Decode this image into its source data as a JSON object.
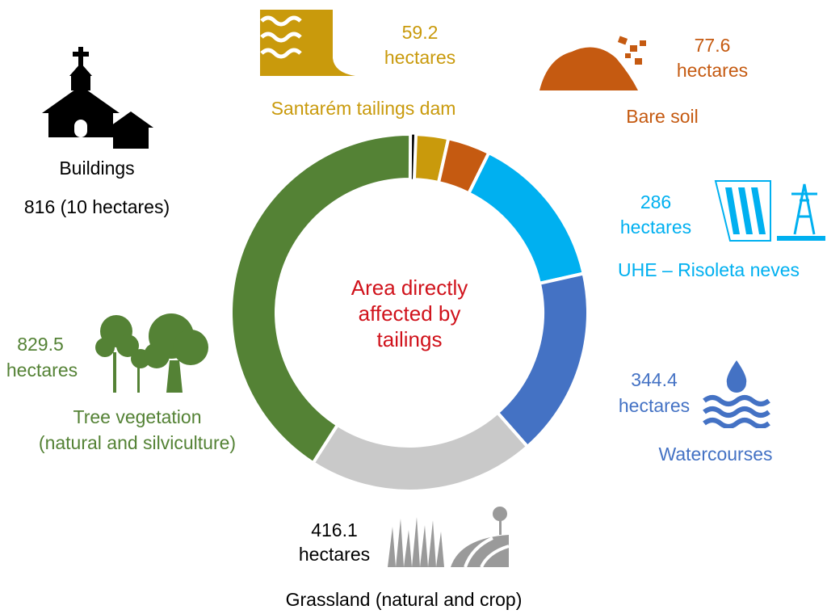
{
  "chart_data": {
    "type": "pie",
    "donut": true,
    "title": "Area directly affected by tailings",
    "unit": "hectares",
    "slices": [
      {
        "name": "Buildings",
        "value": 10,
        "value_label": "816 (10 hectares)",
        "color": "#000000",
        "icon": "church-house-icon"
      },
      {
        "name": "Santarém tailings dam",
        "value": 59.2,
        "value_label": "59.2",
        "unit_label": "hectares",
        "color": "#c99a0c",
        "icon": "dam-icon"
      },
      {
        "name": "Bare soil",
        "value": 77.6,
        "value_label": "77.6",
        "unit_label": "hectares",
        "color": "#c55a11",
        "icon": "soil-pile-icon"
      },
      {
        "name": "UHE – Risoleta neves",
        "value": 286,
        "value_label": "286",
        "unit_label": "hectares",
        "color": "#00b0f0",
        "icon": "hydroelectric-dam-icon"
      },
      {
        "name": "Watercourses",
        "value": 344.4,
        "value_label": "344.4",
        "unit_label": "hectares",
        "color": "#4472c4",
        "icon": "water-drop-waves-icon"
      },
      {
        "name": "Grassland (natural and crop)",
        "value": 416.1,
        "value_label": "416.1",
        "unit_label": "hectares",
        "color": "#c9c9c9",
        "icon": "grass-field-icon"
      },
      {
        "name": "Tree vegetation (natural and silviculture)",
        "name_lines": [
          "Tree vegetation",
          "(natural and silviculture)"
        ],
        "value": 829.5,
        "value_label": "829.5",
        "unit_label": "hectares",
        "color": "#548235",
        "icon": "trees-icon"
      }
    ],
    "center_lines": [
      "Area directly",
      "affected by",
      "tailings"
    ],
    "center_color": "#d0121b"
  }
}
